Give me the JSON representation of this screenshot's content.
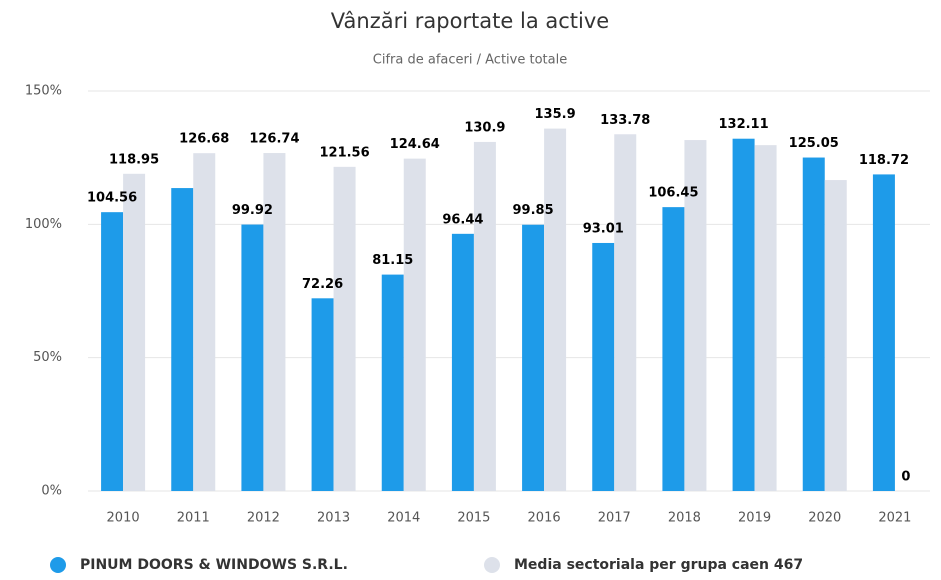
{
  "chart_data": {
    "type": "bar",
    "title": "Vânzări raportate la active",
    "subtitle": "Cifra de afaceri / Active totale",
    "categories": [
      "2010",
      "2011",
      "2012",
      "2013",
      "2014",
      "2015",
      "2016",
      "2017",
      "2018",
      "2019",
      "2020",
      "2021"
    ],
    "series": [
      {
        "name": "PINUM DOORS & WINDOWS S.R.L.",
        "color": "#1e9be9",
        "values": [
          104.56,
          113.6,
          99.92,
          72.26,
          81.15,
          96.44,
          99.85,
          93.01,
          106.45,
          132.11,
          125.05,
          118.72
        ],
        "value_labels": [
          "104.56",
          null,
          "99.92",
          "72.26",
          "81.15",
          "96.44",
          "99.85",
          "93.01",
          "106.45",
          "132.11",
          "125.05",
          "118.72"
        ]
      },
      {
        "name": "Media sectoriala per grupa caen 467",
        "color": "#dde1ea",
        "values": [
          118.95,
          126.68,
          126.74,
          121.56,
          124.64,
          130.9,
          135.9,
          133.78,
          131.6,
          129.7,
          116.6,
          0
        ],
        "value_labels": [
          "118.95",
          "126.68",
          "126.74",
          "121.56",
          "124.64",
          "130.9",
          "135.9",
          "133.78",
          null,
          null,
          null,
          "0"
        ]
      }
    ],
    "ylim": [
      0,
      150
    ],
    "yticks": [
      {
        "value": 0,
        "label": "0%"
      },
      {
        "value": 50,
        "label": "50%"
      },
      {
        "value": 100,
        "label": "100%"
      },
      {
        "value": 150,
        "label": "150%"
      }
    ],
    "grid": true
  }
}
